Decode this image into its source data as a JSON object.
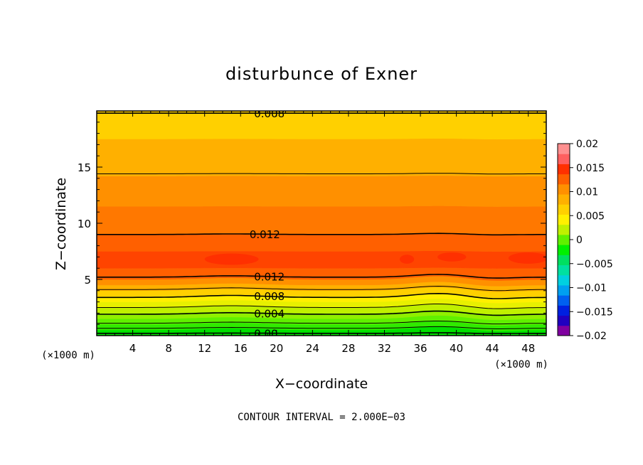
{
  "chart_data": {
    "type": "heatmap",
    "title": "disturbunce of Exner",
    "xlabel": "X−coordinate",
    "ylabel": "Z−coordinate",
    "x_unit_left": "(×1000 m)",
    "x_unit_right": "(×1000 m)",
    "footer": "CONTOUR INTERVAL = 2.000E−03",
    "xlim": [
      0,
      50
    ],
    "ylim": [
      0,
      20
    ],
    "x_ticks": [
      4,
      8,
      12,
      16,
      20,
      24,
      28,
      32,
      36,
      40,
      44,
      48
    ],
    "y_ticks": [
      5,
      10,
      15
    ],
    "colorbar": {
      "min": -0.02,
      "max": 0.02,
      "labels": [
        "0.02",
        "0.015",
        "0.01",
        "0.005",
        "0",
        "−0.005",
        "−0.01",
        "−0.015",
        "−0.02"
      ],
      "colors": [
        "#8000a0",
        "#2000c0",
        "#0020e0",
        "#0060f0",
        "#00a0f0",
        "#00d0e0",
        "#00e0a0",
        "#00e060",
        "#00f000",
        "#60f000",
        "#c0f000",
        "#fff000",
        "#ffd000",
        "#ffb000",
        "#ff9000",
        "#ff6000",
        "#ff3000",
        "#ff6060",
        "#ff9090"
      ]
    },
    "bands": [
      {
        "z0": 0.0,
        "z1": 0.5,
        "color": "#00e000"
      },
      {
        "z0": 0.5,
        "z1": 1.0,
        "color": "#30ea00"
      },
      {
        "z0": 1.0,
        "z1": 1.5,
        "color": "#60f000"
      },
      {
        "z0": 1.5,
        "z1": 2.0,
        "color": "#90f000"
      },
      {
        "z0": 2.0,
        "z1": 2.5,
        "color": "#c0f000"
      },
      {
        "z0": 2.5,
        "z1": 3.0,
        "color": "#e8f000"
      },
      {
        "z0": 3.0,
        "z1": 3.5,
        "color": "#fff000"
      },
      {
        "z0": 3.5,
        "z1": 4.0,
        "color": "#ffd000"
      },
      {
        "z0": 4.0,
        "z1": 4.5,
        "color": "#ffb000"
      },
      {
        "z0": 4.5,
        "z1": 5.0,
        "color": "#ff9000"
      },
      {
        "z0": 5.0,
        "z1": 6.0,
        "color": "#ff6000"
      },
      {
        "z0": 6.0,
        "z1": 7.5,
        "color": "#ff4400"
      },
      {
        "z0": 7.5,
        "z1": 9.0,
        "color": "#ff6000"
      },
      {
        "z0": 9.0,
        "z1": 11.5,
        "color": "#ff7800"
      },
      {
        "z0": 11.5,
        "z1": 14.2,
        "color": "#ff9000"
      },
      {
        "z0": 14.2,
        "z1": 17.5,
        "color": "#ffb000"
      },
      {
        "z0": 17.5,
        "z1": 20.0,
        "color": "#ffd000"
      }
    ],
    "contours": [
      {
        "z": 0.2,
        "label": "0.00",
        "label_x": 17.5,
        "wave": 0.05
      },
      {
        "z": 0.65,
        "label": "",
        "label_x": 0,
        "wave": 0.15
      },
      {
        "z": 1.1,
        "label": "",
        "label_x": 0,
        "wave": 0.2
      },
      {
        "z": 1.9,
        "label": "0.004",
        "label_x": 17.5,
        "wave": 0.28
      },
      {
        "z": 2.5,
        "label": "",
        "label_x": 0,
        "wave": 0.32
      },
      {
        "z": 3.4,
        "label": "0.008",
        "label_x": 17.5,
        "wave": 0.35
      },
      {
        "z": 4.1,
        "label": "",
        "label_x": 0,
        "wave": 0.3
      },
      {
        "z": 5.2,
        "label": "0.012",
        "label_x": 17.5,
        "wave": 0.25
      },
      {
        "z": 9.0,
        "label": "0.012",
        "label_x": 17.0,
        "wave": 0.1
      },
      {
        "z": 14.4,
        "label": "",
        "label_x": 0,
        "wave": 0.05
      },
      {
        "z": 19.8,
        "label": "0.008",
        "label_x": 17.5,
        "wave": 0.0
      }
    ],
    "blobs": [
      {
        "x": 15.0,
        "z": 6.8,
        "rx": 3.0,
        "rz": 0.5
      },
      {
        "x": 34.5,
        "z": 6.8,
        "rx": 0.8,
        "rz": 0.4
      },
      {
        "x": 39.5,
        "z": 7.0,
        "rx": 1.6,
        "rz": 0.4
      },
      {
        "x": 48.0,
        "z": 6.9,
        "rx": 2.2,
        "rz": 0.5
      }
    ]
  }
}
